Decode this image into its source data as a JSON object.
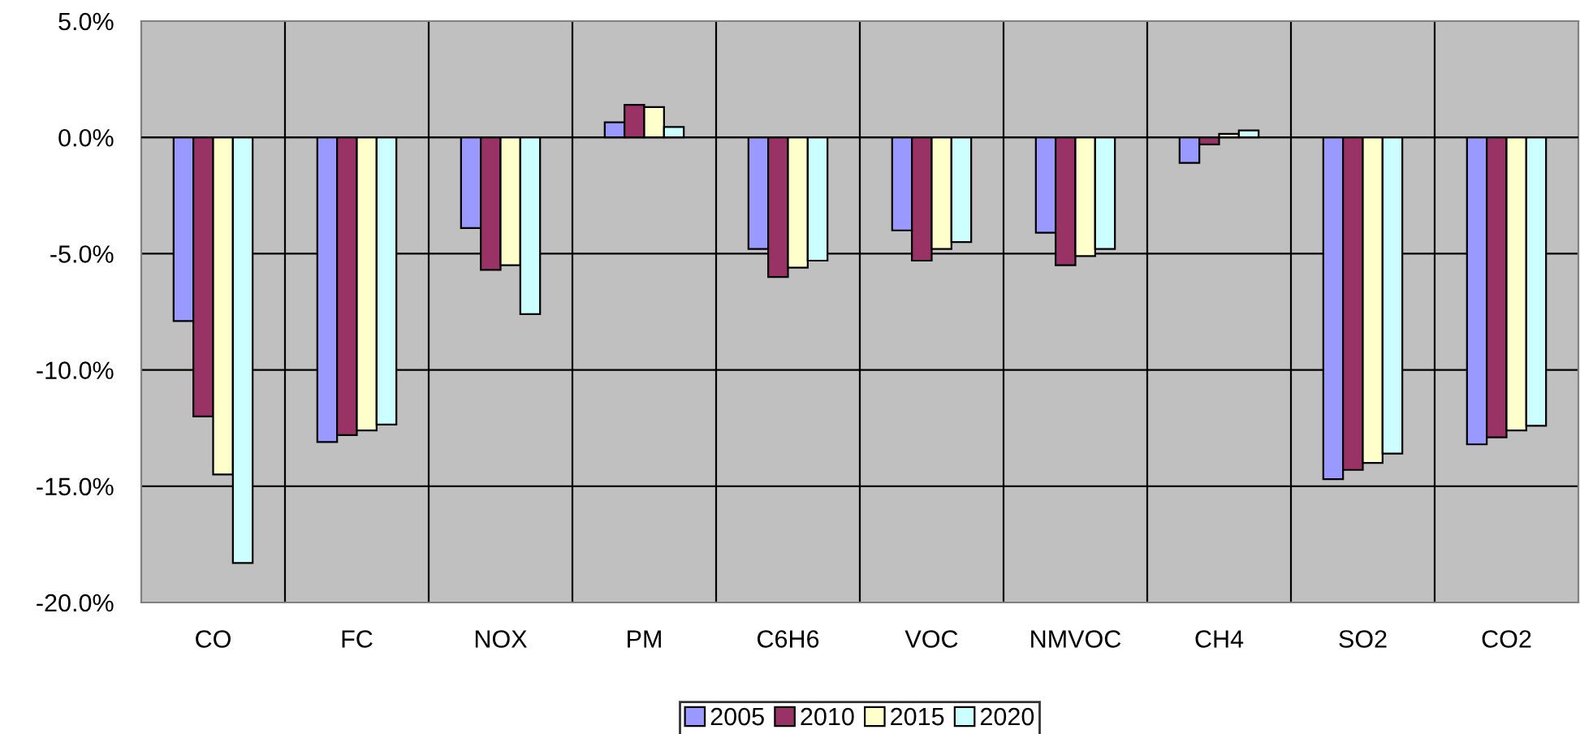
{
  "chart_data": {
    "type": "bar",
    "categories": [
      "CO",
      "FC",
      "NOX",
      "PM",
      "C6H6",
      "VOC",
      "NMVOC",
      "CH4",
      "SO2",
      "CO2"
    ],
    "series": [
      {
        "name": "2005",
        "color": "#9999ff",
        "values": [
          -7.9,
          -13.1,
          -3.9,
          0.65,
          -4.8,
          -4.0,
          -4.1,
          -1.1,
          -14.7,
          -13.2
        ]
      },
      {
        "name": "2010",
        "color": "#993366",
        "values": [
          -12.0,
          -12.8,
          -5.7,
          1.4,
          -6.0,
          -5.3,
          -5.5,
          -0.3,
          -14.3,
          -12.9
        ]
      },
      {
        "name": "2015",
        "color": "#ffffcc",
        "values": [
          -14.5,
          -12.6,
          -5.5,
          1.3,
          -5.6,
          -4.8,
          -5.1,
          0.15,
          -14.0,
          -12.6
        ]
      },
      {
        "name": "2020",
        "color": "#ccffff",
        "values": [
          -18.3,
          -12.35,
          -7.6,
          0.45,
          -5.3,
          -4.5,
          -4.8,
          0.3,
          -13.6,
          -12.4
        ]
      }
    ],
    "ylim": [
      -20,
      5
    ],
    "yticks": [
      {
        "value": -20,
        "label": "-20.0%"
      },
      {
        "value": -15,
        "label": "-15.0%"
      },
      {
        "value": -10,
        "label": "-10.0%"
      },
      {
        "value": -5,
        "label": "-5.0%"
      },
      {
        "value": 0,
        "label": "0.0%"
      },
      {
        "value": 5,
        "label": "5.0%"
      }
    ],
    "grid": true,
    "legend": "bottom"
  }
}
